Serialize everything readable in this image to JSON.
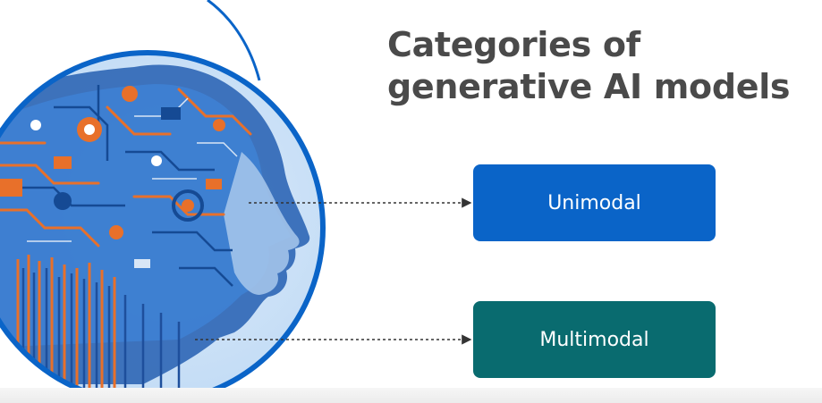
{
  "slide": {
    "title_line_1": "Categories of",
    "title_line_2": "generative AI models"
  },
  "categories": [
    {
      "label": "Unimodal",
      "color": "#0a64c8"
    },
    {
      "label": "Multimodal",
      "color": "#096b6f"
    }
  ],
  "colors": {
    "title": "#4a4a4a",
    "circle_border": "#0a64c8",
    "connector": "#333333",
    "circuit_blue": "#2f6fc4",
    "circuit_orange": "#e8702a"
  },
  "icons": [
    "ai-head-circuit-illustration",
    "arrow-right-icon"
  ]
}
